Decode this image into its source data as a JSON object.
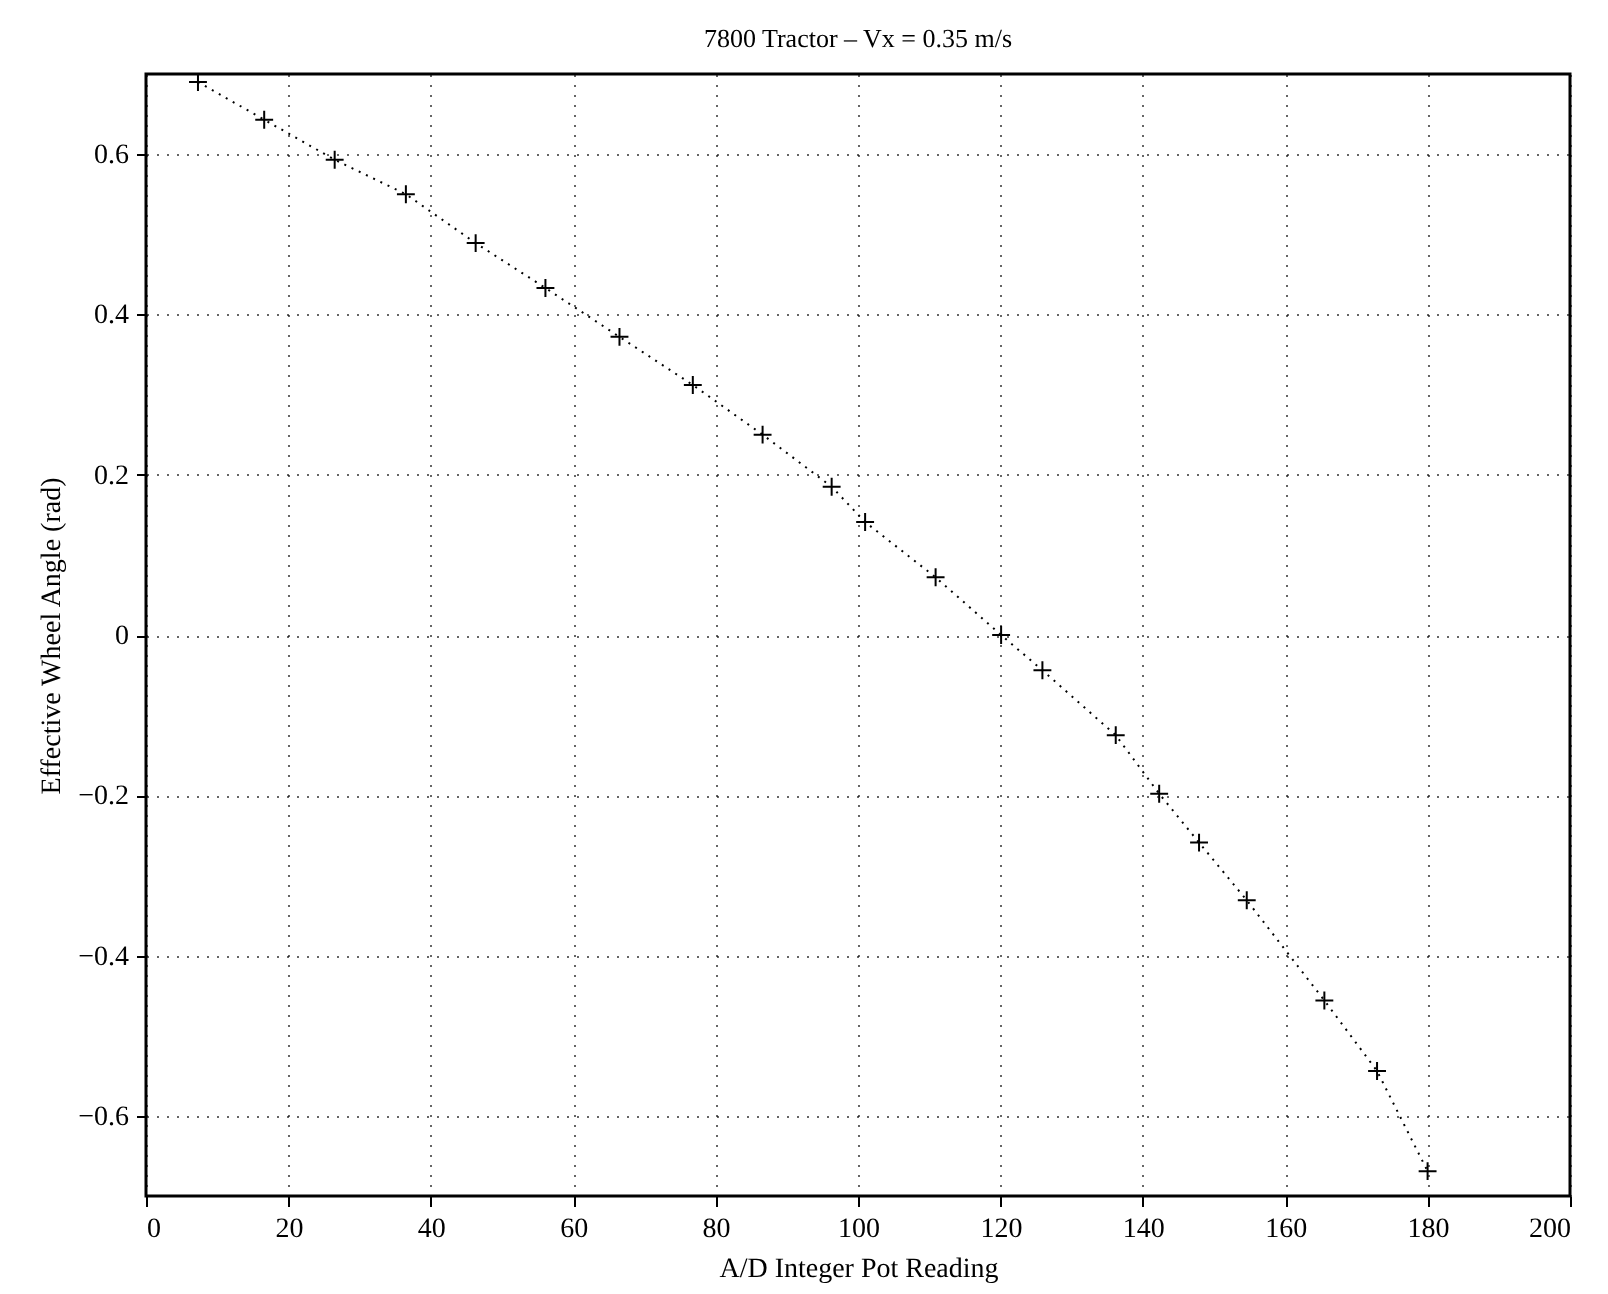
{
  "chart_data": {
    "type": "line",
    "title": "7800 Tractor – Vx = 0.35 m/s",
    "xlabel": "A/D Integer Pot Reading",
    "ylabel": "Effective Wheel Angle (rad)",
    "x": [
      7.3,
      16.6,
      26.5,
      36.5,
      46.3,
      56.1,
      66.5,
      76.8,
      86.6,
      96.3,
      101,
      110.9,
      120.1,
      125.9,
      136.2,
      142.3,
      147.9,
      154.6,
      165.5,
      172.9,
      180
    ],
    "series": [
      {
        "color": "#000000",
        "values": [
          0.69,
          0.643,
          0.593,
          0.55,
          0.489,
          0.433,
          0.372,
          0.312,
          0.25,
          0.185,
          0.141,
          0.072,
          0.0,
          -0.044,
          -0.125,
          -0.198,
          -0.259,
          -0.331,
          -0.456,
          -0.544,
          -0.669
        ]
      }
    ],
    "xlim": [
      0,
      200
    ],
    "xticks": [
      0,
      20,
      40,
      60,
      80,
      100,
      120,
      140,
      160,
      180,
      200
    ],
    "ylim": [
      -0.7,
      0.7
    ],
    "yticks": [
      -0.6,
      -0.4,
      -0.2,
      0,
      0.2,
      0.4,
      0.6
    ],
    "grid": true,
    "marker": "cross",
    "line_style": "dotted"
  }
}
